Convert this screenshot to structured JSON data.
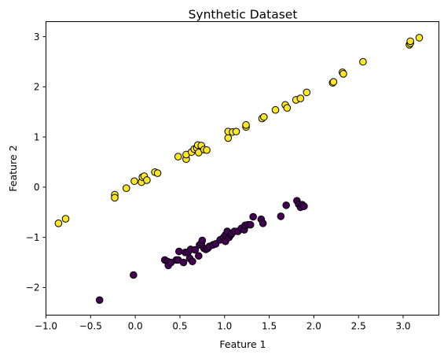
{
  "chart_data": {
    "type": "scatter",
    "title": "Synthetic Dataset",
    "xlabel": "Feature 1",
    "ylabel": "Feature 2",
    "xlim": [
      -1.0,
      3.4
    ],
    "ylim": [
      -2.55,
      3.3
    ],
    "xticks": [
      -1.0,
      -0.5,
      0.0,
      0.5,
      1.0,
      1.5,
      2.0,
      2.5,
      3.0
    ],
    "xtick_labels": [
      "−1.0",
      "−0.5",
      "0.0",
      "0.5",
      "1.0",
      "1.5",
      "2.0",
      "2.5",
      "3.0"
    ],
    "yticks": [
      -2,
      -1,
      0,
      1,
      2,
      3
    ],
    "ytick_labels": [
      "−2",
      "−1",
      "0",
      "1",
      "2",
      "3"
    ],
    "grid": false,
    "legend": "none",
    "series": [
      {
        "color": "#fde725",
        "edgecolor": "#000000",
        "points": [
          [
            -0.86,
            -0.72
          ],
          [
            -0.78,
            -0.63
          ],
          [
            -0.23,
            -0.15
          ],
          [
            -0.23,
            -0.21
          ],
          [
            -0.1,
            -0.02
          ],
          [
            -0.01,
            0.12
          ],
          [
            0.07,
            0.1
          ],
          [
            0.08,
            0.2
          ],
          [
            0.1,
            0.22
          ],
          [
            0.13,
            0.14
          ],
          [
            0.22,
            0.3
          ],
          [
            0.25,
            0.28
          ],
          [
            0.48,
            0.61
          ],
          [
            0.57,
            0.56
          ],
          [
            0.57,
            0.65
          ],
          [
            0.63,
            0.7
          ],
          [
            0.66,
            0.76
          ],
          [
            0.69,
            0.78
          ],
          [
            0.7,
            0.84
          ],
          [
            0.71,
            0.69
          ],
          [
            0.74,
            0.83
          ],
          [
            0.77,
            0.75
          ],
          [
            0.8,
            0.74
          ],
          [
            1.04,
            0.98
          ],
          [
            1.04,
            1.11
          ],
          [
            1.09,
            1.1
          ],
          [
            1.13,
            1.11
          ],
          [
            1.24,
            1.2
          ],
          [
            1.24,
            1.24
          ],
          [
            1.42,
            1.37
          ],
          [
            1.44,
            1.4
          ],
          [
            1.57,
            1.54
          ],
          [
            1.68,
            1.64
          ],
          [
            1.7,
            1.58
          ],
          [
            1.8,
            1.74
          ],
          [
            1.85,
            1.77
          ],
          [
            1.92,
            1.89
          ],
          [
            2.21,
            2.08
          ],
          [
            2.22,
            2.1
          ],
          [
            2.32,
            2.29
          ],
          [
            2.33,
            2.26
          ],
          [
            2.55,
            2.5
          ],
          [
            3.07,
            2.84
          ],
          [
            3.08,
            2.87
          ],
          [
            3.08,
            2.91
          ],
          [
            3.18,
            2.98
          ]
        ]
      },
      {
        "color": "#440154",
        "edgecolor": "#000000",
        "points": [
          [
            -0.4,
            -2.25
          ],
          [
            -0.02,
            -1.75
          ],
          [
            0.33,
            -1.45
          ],
          [
            0.36,
            -1.48
          ],
          [
            0.37,
            -1.56
          ],
          [
            0.4,
            -1.5
          ],
          [
            0.46,
            -1.45
          ],
          [
            0.48,
            -1.45
          ],
          [
            0.49,
            -1.28
          ],
          [
            0.54,
            -1.5
          ],
          [
            0.56,
            -1.3
          ],
          [
            0.59,
            -1.3
          ],
          [
            0.61,
            -1.42
          ],
          [
            0.62,
            -1.24
          ],
          [
            0.64,
            -1.48
          ],
          [
            0.67,
            -1.25
          ],
          [
            0.71,
            -1.37
          ],
          [
            0.72,
            -1.15
          ],
          [
            0.74,
            -1.12
          ],
          [
            0.75,
            -1.06
          ],
          [
            0.77,
            -1.22
          ],
          [
            0.79,
            -1.24
          ],
          [
            0.81,
            -1.22
          ],
          [
            0.83,
            -1.18
          ],
          [
            0.87,
            -1.15
          ],
          [
            0.9,
            -1.13
          ],
          [
            0.95,
            -1.05
          ],
          [
            0.99,
            -1.0
          ],
          [
            1.01,
            -0.95
          ],
          [
            1.01,
            -1.08
          ],
          [
            1.03,
            -0.88
          ],
          [
            1.05,
            -1.0
          ],
          [
            1.07,
            -0.95
          ],
          [
            1.08,
            -0.92
          ],
          [
            1.11,
            -0.88
          ],
          [
            1.15,
            -0.88
          ],
          [
            1.19,
            -0.82
          ],
          [
            1.22,
            -0.85
          ],
          [
            1.23,
            -0.76
          ],
          [
            1.26,
            -0.75
          ],
          [
            1.29,
            -0.75
          ],
          [
            1.32,
            -0.59
          ],
          [
            1.41,
            -0.64
          ],
          [
            1.43,
            -0.72
          ],
          [
            1.63,
            -0.58
          ],
          [
            1.69,
            -0.36
          ],
          [
            1.81,
            -0.27
          ],
          [
            1.83,
            -0.34
          ],
          [
            1.85,
            -0.4
          ],
          [
            1.87,
            -0.35
          ],
          [
            1.89,
            -0.38
          ]
        ]
      }
    ]
  }
}
